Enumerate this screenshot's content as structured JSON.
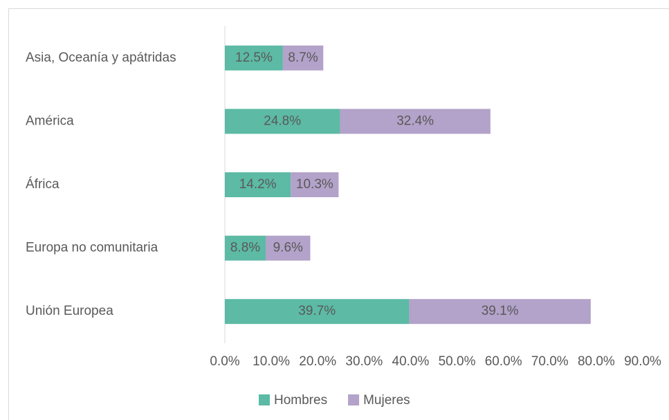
{
  "chart_data": {
    "type": "stacked-barh",
    "categories": [
      "Asia, Oceanía y apátridas",
      "América",
      "África",
      "Europa no comunitaria",
      "Unión Europea"
    ],
    "series": [
      {
        "name": "Hombres",
        "color": "#5cbaa5",
        "values": [
          12.5,
          24.8,
          14.2,
          8.8,
          39.7
        ],
        "value_labels": [
          "12.5%",
          "24.8%",
          "14.2%",
          "8.8%",
          "39.7%"
        ]
      },
      {
        "name": "Mujeres",
        "color": "#b3a2c9",
        "values": [
          8.7,
          32.4,
          10.3,
          9.6,
          39.1
        ],
        "value_labels": [
          "8.7%",
          "32.4%",
          "10.3%",
          "9.6%",
          "39.1%"
        ]
      }
    ],
    "xlim": [
      0,
      90
    ],
    "xticks": [
      {
        "value": 0,
        "label": "0.0%"
      },
      {
        "value": 10,
        "label": "10.0%"
      },
      {
        "value": 20,
        "label": "20.0%"
      },
      {
        "value": 30,
        "label": "30.0%"
      },
      {
        "value": 40,
        "label": "40.0%"
      },
      {
        "value": 50,
        "label": "50.0%"
      },
      {
        "value": 60,
        "label": "60.0%"
      },
      {
        "value": 70,
        "label": "70.0%"
      },
      {
        "value": 80,
        "label": "80.0%"
      },
      {
        "value": 90,
        "label": "90.0%"
      }
    ],
    "legend": "bottom"
  }
}
